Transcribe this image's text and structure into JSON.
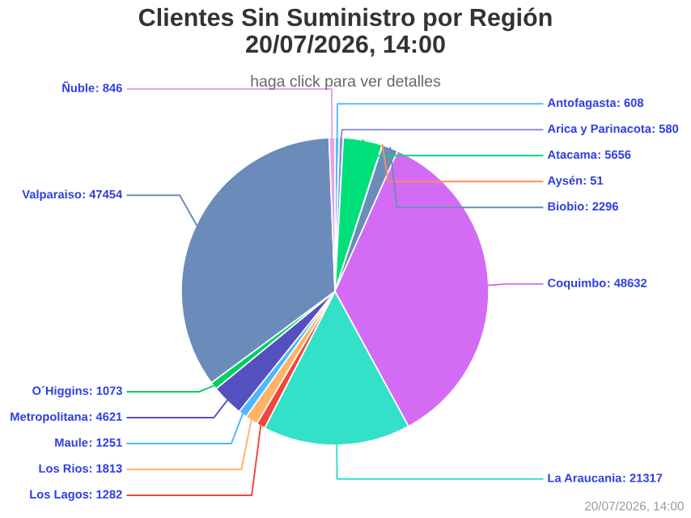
{
  "chart_data": {
    "type": "pie",
    "title": "Clientes Sin Suministro por Región\n20/07/2026, 14:00",
    "subtitle": "haga click para ver detalles",
    "categories": [
      "Antofagasta",
      "Arica y Parinacota",
      "Atacama",
      "Aysén",
      "Biobio",
      "Coquimbo",
      "La Araucania",
      "Los Lagos",
      "Los Rios",
      "Maule",
      "Metropolitana",
      "O´Higgins",
      "Valparaiso",
      "Ñuble"
    ],
    "values": [
      608,
      580,
      5656,
      51,
      2296,
      48632,
      21317,
      1282,
      1813,
      1251,
      4621,
      1073,
      47454,
      846
    ],
    "colors": [
      "#55bdf5",
      "#8a8ee0",
      "#00e07a",
      "#ff8c5a",
      "#6b8cba",
      "#d46bf5",
      "#33e0c8",
      "#f0463c",
      "#ffb366",
      "#4db8ff",
      "#5550c0",
      "#00d060",
      "#6b8cba",
      "#e8a0f0"
    ],
    "value_labels": [
      ": 608",
      ": 580",
      ": 5656",
      ": 51",
      ": 2296",
      ": 48632",
      ": 21317",
      ": 1282",
      ": 1813",
      ": 1251",
      ": 4621",
      ": 1073",
      ": 47454",
      ": 846"
    ],
    "annotations": [
      "20/07/2026, 14:00"
    ]
  }
}
